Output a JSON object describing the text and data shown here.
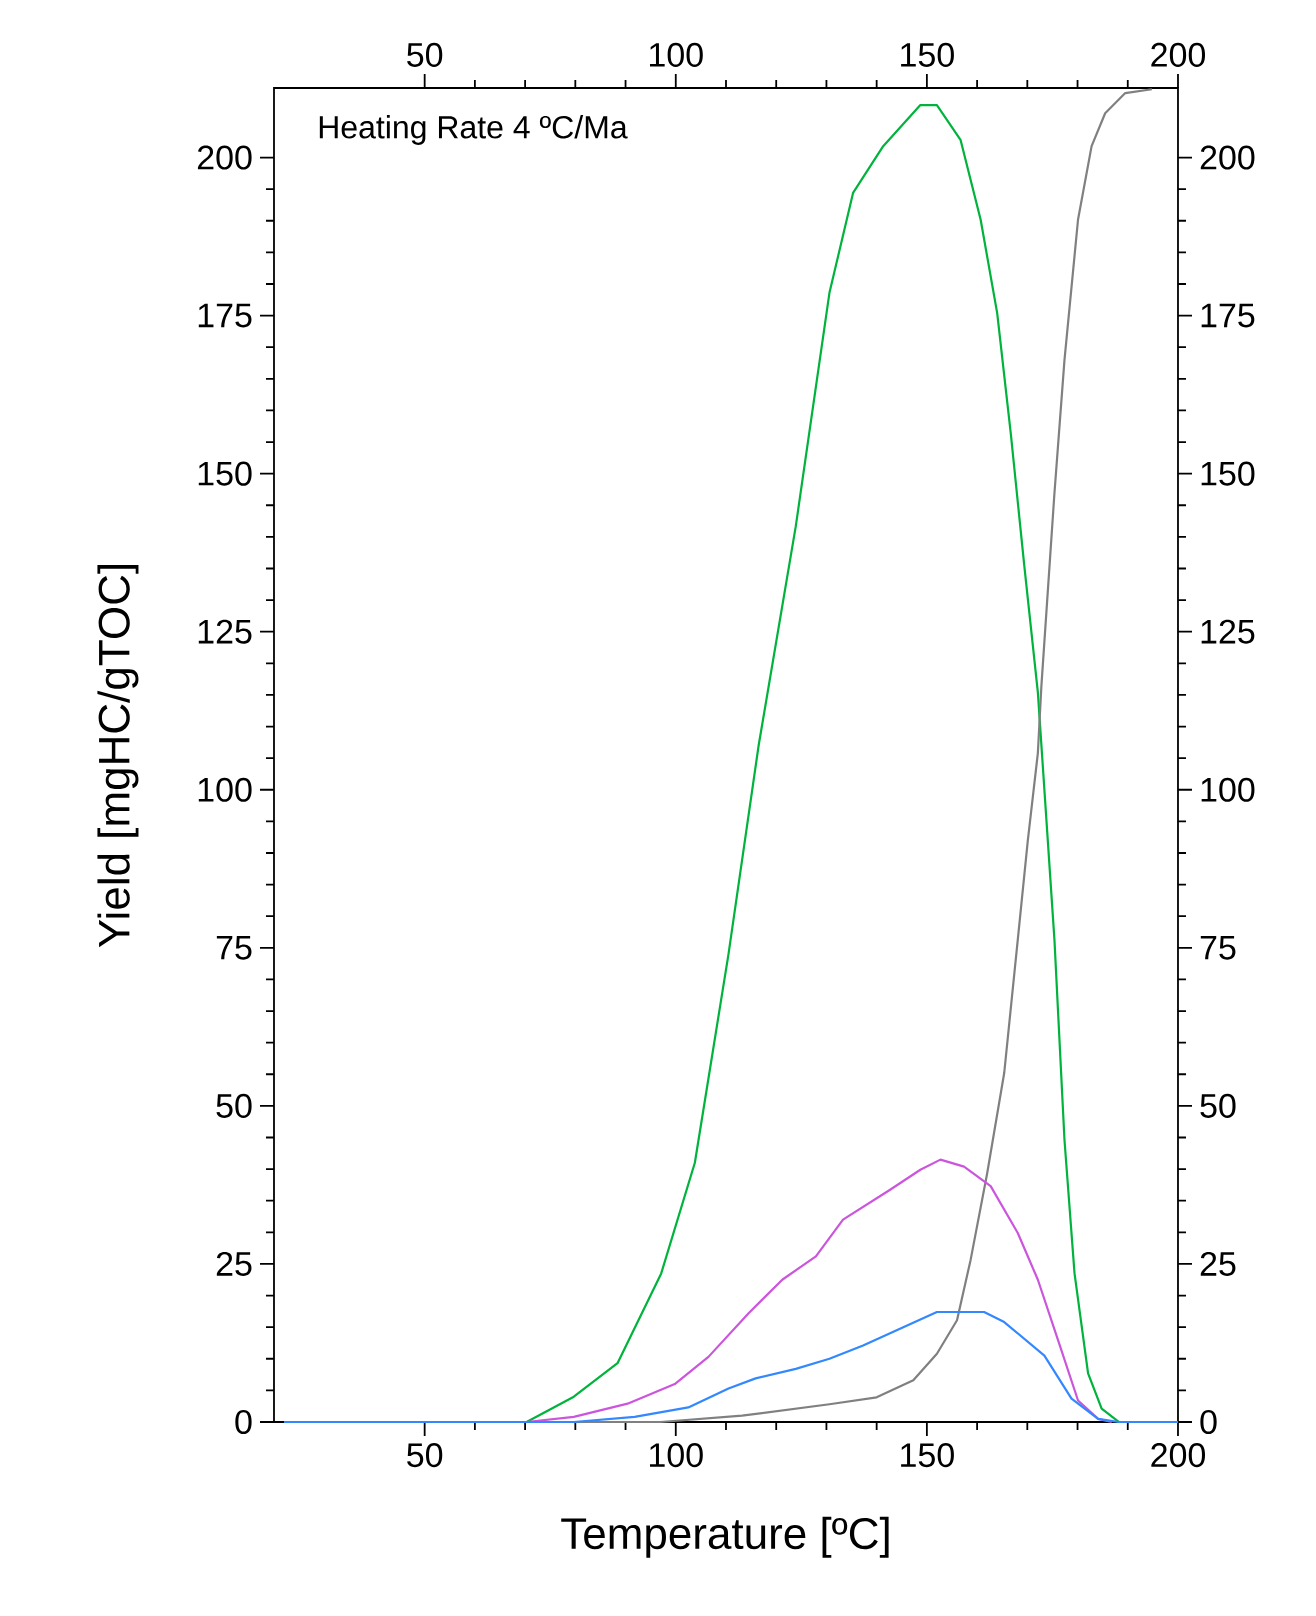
{
  "chart_data": {
    "type": "line",
    "xlabel": "Temperature [ºC]",
    "ylabel": "Yield [mgHC/gTOC]",
    "annotations": [
      "Heating Rate 4 ºC/Ma"
    ],
    "xlim": [
      20,
      200
    ],
    "xticks": [
      50,
      100,
      150,
      200
    ],
    "ylim": [
      0,
      211
    ],
    "yticks": [
      0,
      25,
      50,
      75,
      100,
      125,
      150,
      175,
      200
    ],
    "x2lim": [
      20,
      200
    ],
    "x2ticks": [
      50,
      100,
      150,
      200
    ],
    "y2lim": [
      0,
      211
    ],
    "y2ticks": [
      0,
      25,
      50,
      75,
      100,
      125,
      150,
      175,
      200
    ],
    "series": [
      {
        "color": "#00b33c",
        "x": [
          22,
          70.3,
          79.7,
          88.4,
          97.1,
          103.8,
          110.5,
          116.5,
          123.9,
          130.6,
          135.3,
          141.3,
          148.7,
          152,
          156.7,
          160.7,
          164,
          166.7,
          169.4,
          172.1,
          175.4,
          177.4,
          179.4,
          182.1,
          184.8,
          188.2,
          200
        ],
        "values": [
          0,
          0,
          4,
          9.3,
          23.5,
          41,
          74,
          107,
          141.7,
          178.6,
          194.4,
          201.8,
          208.3,
          208.3,
          202.8,
          190.2,
          175.4,
          156.4,
          135.4,
          115.4,
          76.3,
          44.6,
          23.5,
          7.7,
          2.1,
          0,
          0
        ]
      },
      {
        "color": "#808080",
        "x": [
          22,
          97,
          113.2,
          130.6,
          140,
          147.3,
          152,
          156,
          158.7,
          162,
          165.4,
          168.1,
          170.1,
          172.1,
          172.8,
          175.4,
          177.4,
          180.1,
          182.8,
          185.5,
          189.5,
          194.8
        ],
        "values": [
          0,
          0,
          1,
          2.8,
          3.9,
          6.6,
          10.8,
          16.1,
          25.6,
          39.3,
          55.2,
          76.3,
          92,
          105.8,
          116.4,
          146.9,
          168,
          190.2,
          201.8,
          207,
          210.2,
          210.8
        ]
      },
      {
        "color": "#cc55dd",
        "x": [
          22,
          70.3,
          79.7,
          90.4,
          99.8,
          106.5,
          114.5,
          121.2,
          127.9,
          133.3,
          142.6,
          148.7,
          152.7,
          157.4,
          162.7,
          168.1,
          172.1,
          176.1,
          180.1,
          184.1,
          186.8
        ],
        "values": [
          0,
          0,
          0.8,
          2.9,
          6,
          10.3,
          17.2,
          22.5,
          26.2,
          32,
          36.7,
          39.9,
          41.5,
          40.4,
          37.3,
          29.9,
          22.5,
          13,
          3.4,
          0.5,
          0
        ]
      },
      {
        "color": "#3388ff",
        "x": [
          22,
          79.7,
          91.8,
          102.5,
          110.5,
          115.9,
          123.9,
          130.6,
          137.3,
          145.3,
          152,
          161.4,
          165.4,
          173.4,
          178.8,
          184.1,
          188.2,
          200
        ],
        "values": [
          0,
          0,
          0.8,
          2.3,
          5.3,
          6.9,
          8.4,
          10,
          12.1,
          15,
          17.4,
          17.4,
          15.8,
          10.5,
          3.7,
          0.5,
          0,
          0
        ]
      }
    ]
  }
}
